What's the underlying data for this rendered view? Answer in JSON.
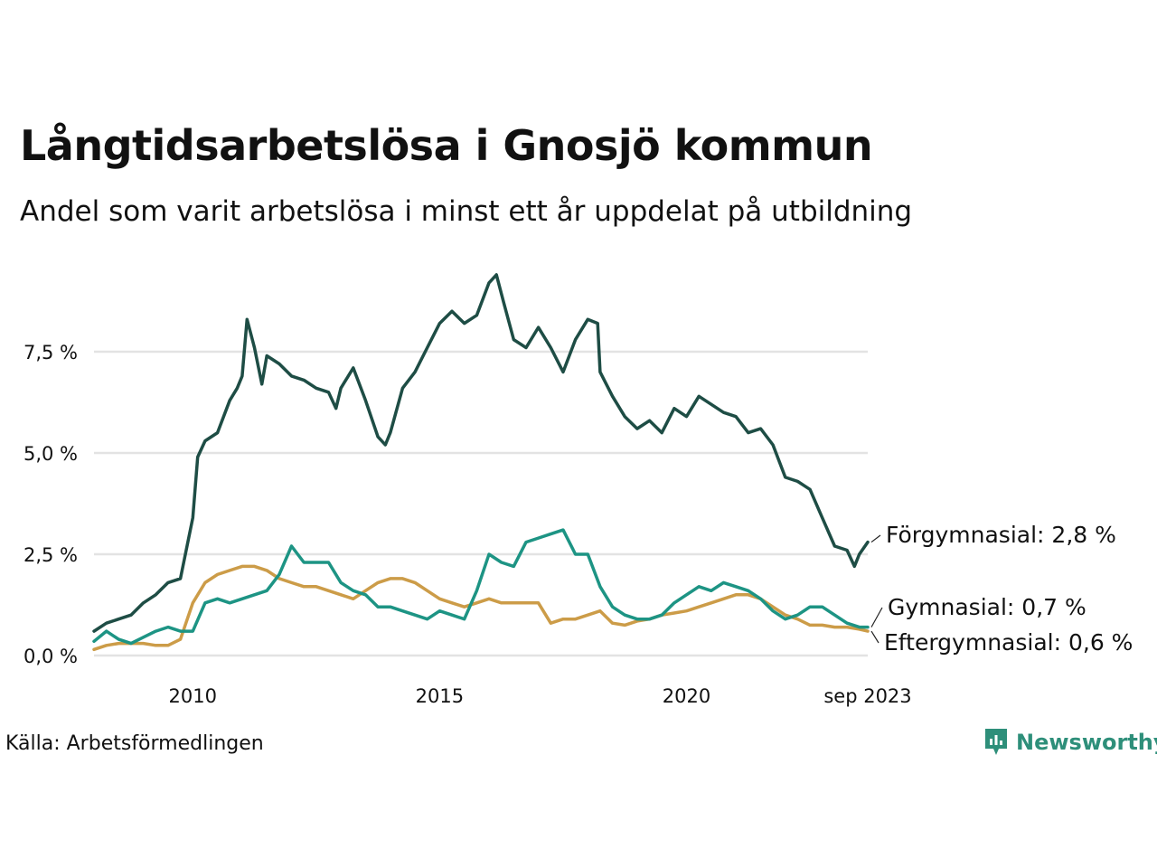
{
  "title": "Långtidsarbetslösa i Gnosjö kommun",
  "subtitle": "Andel som varit arbetslösa i minst ett år uppdelat på utbildning",
  "source": "Källa: Arbetsförmedlingen",
  "brand": "Newsworthy",
  "colors": {
    "forgymnasial": "#1e4d45",
    "gymnasial": "#1d9484",
    "eftergymnasial": "#cc9c48",
    "grid": "#e3e3e3",
    "brand": "#2e8f7a"
  },
  "chart_data": {
    "type": "line",
    "title": "Långtidsarbetslösa i Gnosjö kommun",
    "ylabel": "",
    "xlabel": "",
    "ylim": [
      0,
      9.6
    ],
    "xlim": [
      2008.0,
      2023.67
    ],
    "yticks": [
      {
        "value": 0,
        "label": "0,0 %"
      },
      {
        "value": 2.5,
        "label": "2,5 %"
      },
      {
        "value": 5.0,
        "label": "5,0 %"
      },
      {
        "value": 7.5,
        "label": "7,5 %"
      }
    ],
    "xticks": [
      {
        "value": 2010,
        "label": "2010"
      },
      {
        "value": 2015,
        "label": "2015"
      },
      {
        "value": 2020,
        "label": "2020"
      },
      {
        "value": 2023.67,
        "label": "sep 2023"
      }
    ],
    "series": [
      {
        "name": "Förgymnasial",
        "label": "Förgymnasial: 2,8 %",
        "color": "#1e4d45",
        "points": [
          [
            2008.0,
            0.6
          ],
          [
            2008.25,
            0.8
          ],
          [
            2008.5,
            0.9
          ],
          [
            2008.75,
            1.0
          ],
          [
            2009.0,
            1.3
          ],
          [
            2009.25,
            1.5
          ],
          [
            2009.5,
            1.8
          ],
          [
            2009.75,
            1.9
          ],
          [
            2010.0,
            3.4
          ],
          [
            2010.1,
            4.9
          ],
          [
            2010.25,
            5.3
          ],
          [
            2010.5,
            5.5
          ],
          [
            2010.75,
            6.3
          ],
          [
            2010.9,
            6.6
          ],
          [
            2011.0,
            6.9
          ],
          [
            2011.1,
            8.3
          ],
          [
            2011.25,
            7.6
          ],
          [
            2011.4,
            6.7
          ],
          [
            2011.5,
            7.4
          ],
          [
            2011.75,
            7.2
          ],
          [
            2012.0,
            6.9
          ],
          [
            2012.25,
            6.8
          ],
          [
            2012.5,
            6.6
          ],
          [
            2012.75,
            6.5
          ],
          [
            2012.9,
            6.1
          ],
          [
            2013.0,
            6.6
          ],
          [
            2013.25,
            7.1
          ],
          [
            2013.5,
            6.3
          ],
          [
            2013.75,
            5.4
          ],
          [
            2013.9,
            5.2
          ],
          [
            2014.0,
            5.5
          ],
          [
            2014.25,
            6.6
          ],
          [
            2014.5,
            7.0
          ],
          [
            2014.75,
            7.6
          ],
          [
            2015.0,
            8.2
          ],
          [
            2015.25,
            8.5
          ],
          [
            2015.5,
            8.2
          ],
          [
            2015.75,
            8.4
          ],
          [
            2016.0,
            9.2
          ],
          [
            2016.15,
            9.4
          ],
          [
            2016.3,
            8.7
          ],
          [
            2016.5,
            7.8
          ],
          [
            2016.75,
            7.6
          ],
          [
            2017.0,
            8.1
          ],
          [
            2017.25,
            7.6
          ],
          [
            2017.5,
            7.0
          ],
          [
            2017.75,
            7.8
          ],
          [
            2018.0,
            8.3
          ],
          [
            2018.2,
            8.2
          ],
          [
            2018.25,
            7.0
          ],
          [
            2018.5,
            6.4
          ],
          [
            2018.75,
            5.9
          ],
          [
            2019.0,
            5.6
          ],
          [
            2019.25,
            5.8
          ],
          [
            2019.5,
            5.5
          ],
          [
            2019.75,
            6.1
          ],
          [
            2020.0,
            5.9
          ],
          [
            2020.25,
            6.4
          ],
          [
            2020.5,
            6.2
          ],
          [
            2020.75,
            6.0
          ],
          [
            2021.0,
            5.9
          ],
          [
            2021.25,
            5.5
          ],
          [
            2021.5,
            5.6
          ],
          [
            2021.75,
            5.2
          ],
          [
            2022.0,
            4.4
          ],
          [
            2022.25,
            4.3
          ],
          [
            2022.5,
            4.1
          ],
          [
            2022.75,
            3.4
          ],
          [
            2023.0,
            2.7
          ],
          [
            2023.25,
            2.6
          ],
          [
            2023.4,
            2.2
          ],
          [
            2023.5,
            2.5
          ],
          [
            2023.67,
            2.8
          ]
        ]
      },
      {
        "name": "Gymnasial",
        "label": "Gymnasial: 0,7 %",
        "color": "#1d9484",
        "points": [
          [
            2008.0,
            0.35
          ],
          [
            2008.25,
            0.6
          ],
          [
            2008.5,
            0.4
          ],
          [
            2008.75,
            0.3
          ],
          [
            2009.0,
            0.45
          ],
          [
            2009.25,
            0.6
          ],
          [
            2009.5,
            0.7
          ],
          [
            2009.75,
            0.6
          ],
          [
            2010.0,
            0.6
          ],
          [
            2010.25,
            1.3
          ],
          [
            2010.5,
            1.4
          ],
          [
            2010.75,
            1.3
          ],
          [
            2011.0,
            1.4
          ],
          [
            2011.25,
            1.5
          ],
          [
            2011.5,
            1.6
          ],
          [
            2011.75,
            2.0
          ],
          [
            2012.0,
            2.7
          ],
          [
            2012.25,
            2.3
          ],
          [
            2012.5,
            2.3
          ],
          [
            2012.75,
            2.3
          ],
          [
            2013.0,
            1.8
          ],
          [
            2013.25,
            1.6
          ],
          [
            2013.5,
            1.5
          ],
          [
            2013.75,
            1.2
          ],
          [
            2014.0,
            1.2
          ],
          [
            2014.25,
            1.1
          ],
          [
            2014.5,
            1.0
          ],
          [
            2014.75,
            0.9
          ],
          [
            2015.0,
            1.1
          ],
          [
            2015.25,
            1.0
          ],
          [
            2015.5,
            0.9
          ],
          [
            2015.75,
            1.6
          ],
          [
            2016.0,
            2.5
          ],
          [
            2016.25,
            2.3
          ],
          [
            2016.5,
            2.2
          ],
          [
            2016.75,
            2.8
          ],
          [
            2017.0,
            2.9
          ],
          [
            2017.25,
            3.0
          ],
          [
            2017.5,
            3.1
          ],
          [
            2017.75,
            2.5
          ],
          [
            2018.0,
            2.5
          ],
          [
            2018.25,
            1.7
          ],
          [
            2018.5,
            1.2
          ],
          [
            2018.75,
            1.0
          ],
          [
            2019.0,
            0.9
          ],
          [
            2019.25,
            0.9
          ],
          [
            2019.5,
            1.0
          ],
          [
            2019.75,
            1.3
          ],
          [
            2020.0,
            1.5
          ],
          [
            2020.25,
            1.7
          ],
          [
            2020.5,
            1.6
          ],
          [
            2020.75,
            1.8
          ],
          [
            2021.0,
            1.7
          ],
          [
            2021.25,
            1.6
          ],
          [
            2021.5,
            1.4
          ],
          [
            2021.75,
            1.1
          ],
          [
            2022.0,
            0.9
          ],
          [
            2022.25,
            1.0
          ],
          [
            2022.5,
            1.2
          ],
          [
            2022.75,
            1.2
          ],
          [
            2023.0,
            1.0
          ],
          [
            2023.25,
            0.8
          ],
          [
            2023.5,
            0.7
          ],
          [
            2023.67,
            0.7
          ]
        ]
      },
      {
        "name": "Eftergymnasial",
        "label": "Eftergymnasial: 0,6 %",
        "color": "#cc9c48",
        "points": [
          [
            2008.0,
            0.15
          ],
          [
            2008.25,
            0.25
          ],
          [
            2008.5,
            0.3
          ],
          [
            2008.75,
            0.3
          ],
          [
            2009.0,
            0.3
          ],
          [
            2009.25,
            0.25
          ],
          [
            2009.5,
            0.25
          ],
          [
            2009.75,
            0.4
          ],
          [
            2010.0,
            1.3
          ],
          [
            2010.25,
            1.8
          ],
          [
            2010.5,
            2.0
          ],
          [
            2010.75,
            2.1
          ],
          [
            2011.0,
            2.2
          ],
          [
            2011.25,
            2.2
          ],
          [
            2011.5,
            2.1
          ],
          [
            2011.75,
            1.9
          ],
          [
            2012.0,
            1.8
          ],
          [
            2012.25,
            1.7
          ],
          [
            2012.5,
            1.7
          ],
          [
            2012.75,
            1.6
          ],
          [
            2013.0,
            1.5
          ],
          [
            2013.25,
            1.4
          ],
          [
            2013.5,
            1.6
          ],
          [
            2013.75,
            1.8
          ],
          [
            2014.0,
            1.9
          ],
          [
            2014.25,
            1.9
          ],
          [
            2014.5,
            1.8
          ],
          [
            2014.75,
            1.6
          ],
          [
            2015.0,
            1.4
          ],
          [
            2015.25,
            1.3
          ],
          [
            2015.5,
            1.2
          ],
          [
            2015.75,
            1.3
          ],
          [
            2016.0,
            1.4
          ],
          [
            2016.25,
            1.3
          ],
          [
            2016.5,
            1.3
          ],
          [
            2016.75,
            1.3
          ],
          [
            2017.0,
            1.3
          ],
          [
            2017.25,
            0.8
          ],
          [
            2017.5,
            0.9
          ],
          [
            2017.75,
            0.9
          ],
          [
            2018.0,
            1.0
          ],
          [
            2018.25,
            1.1
          ],
          [
            2018.5,
            0.8
          ],
          [
            2018.75,
            0.75
          ],
          [
            2019.0,
            0.85
          ],
          [
            2019.25,
            0.9
          ],
          [
            2019.5,
            1.0
          ],
          [
            2019.75,
            1.05
          ],
          [
            2020.0,
            1.1
          ],
          [
            2020.25,
            1.2
          ],
          [
            2020.5,
            1.3
          ],
          [
            2020.75,
            1.4
          ],
          [
            2021.0,
            1.5
          ],
          [
            2021.25,
            1.5
          ],
          [
            2021.5,
            1.4
          ],
          [
            2021.75,
            1.2
          ],
          [
            2022.0,
            1.0
          ],
          [
            2022.25,
            0.9
          ],
          [
            2022.5,
            0.75
          ],
          [
            2022.75,
            0.75
          ],
          [
            2023.0,
            0.7
          ],
          [
            2023.25,
            0.7
          ],
          [
            2023.5,
            0.65
          ],
          [
            2023.67,
            0.6
          ]
        ]
      }
    ]
  }
}
